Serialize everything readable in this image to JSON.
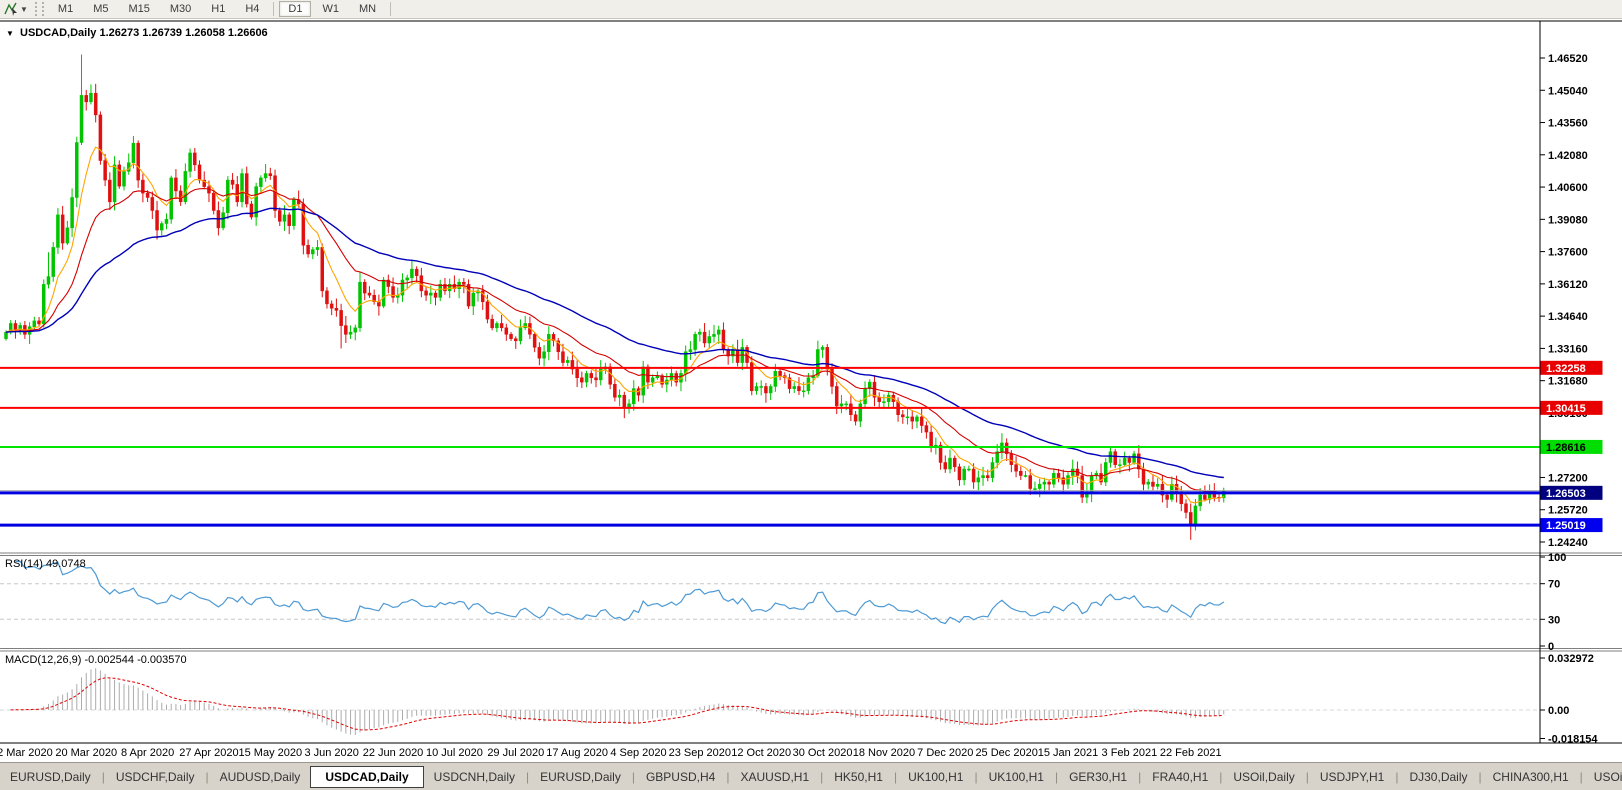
{
  "toolbar": {
    "timeframes": [
      "M1",
      "M5",
      "M15",
      "M30",
      "H1",
      "H4",
      "D1",
      "W1",
      "MN"
    ],
    "active_timeframe": "D1"
  },
  "chart": {
    "title_symbol": "USDCAD,Daily",
    "title_ohlc": "1.26273 1.26739 1.26058 1.26606"
  },
  "chart_data": {
    "type": "candlestick",
    "symbol": "USDCAD",
    "timeframe": "Daily",
    "last_bar": {
      "open": 1.26273,
      "high": 1.26739,
      "low": 1.26058,
      "close": 1.26606
    },
    "price_axis_ticks": [
      "1.46520",
      "1.45040",
      "1.43560",
      "1.42080",
      "1.40600",
      "1.39080",
      "1.37600",
      "1.36120",
      "1.34640",
      "1.33160",
      "1.31680",
      "1.30160",
      "1.28680",
      "1.27200",
      "1.25720",
      "1.24240"
    ],
    "x_tick_labels": [
      "2 Mar 2020",
      "20 Mar 2020",
      "8 Apr 2020",
      "27 Apr 2020",
      "15 May 2020",
      "3 Jun 2020",
      "22 Jun 2020",
      "10 Jul 2020",
      "29 Jul 2020",
      "17 Aug 2020",
      "4 Sep 2020",
      "23 Sep 2020",
      "12 Oct 2020",
      "30 Oct 2020",
      "18 Nov 2020",
      "7 Dec 2020",
      "25 Dec 2020",
      "15 Jan 2021",
      "3 Feb 2021",
      "22 Feb 2021"
    ],
    "closes": [
      1.339,
      1.343,
      1.3402,
      1.3421,
      1.338,
      1.3415,
      1.3442,
      1.3428,
      1.361,
      1.3646,
      1.378,
      1.393,
      1.38,
      1.387,
      1.401,
      1.4263,
      1.448,
      1.445,
      1.449,
      1.439,
      1.418,
      1.409,
      1.399,
      1.416,
      1.4062,
      1.413,
      1.417,
      1.426,
      1.409,
      1.403,
      1.401,
      1.395,
      1.386,
      1.389,
      1.391,
      1.41,
      1.404,
      1.399,
      1.413,
      1.4215,
      1.416,
      1.409,
      1.406,
      1.403,
      1.395,
      1.387,
      1.394,
      1.409,
      1.407,
      1.399,
      1.412,
      1.398,
      1.392,
      1.406,
      1.41,
      1.412,
      1.411,
      1.395,
      1.39,
      1.393,
      1.388,
      1.4,
      1.398,
      1.379,
      1.375,
      1.377,
      1.378,
      1.358,
      1.352,
      1.35,
      1.349,
      1.342,
      1.338,
      1.339,
      1.341,
      1.362,
      1.357,
      1.356,
      1.353,
      1.351,
      1.363,
      1.36,
      1.355,
      1.356,
      1.363,
      1.364,
      1.368,
      1.365,
      1.358,
      1.356,
      1.357,
      1.355,
      1.361,
      1.358,
      1.361,
      1.359,
      1.362,
      1.361,
      1.351,
      1.357,
      1.358,
      1.353,
      1.345,
      1.341,
      1.343,
      1.341,
      1.338,
      1.336,
      1.335,
      1.341,
      1.343,
      1.338,
      1.332,
      1.327,
      1.33,
      1.338,
      1.335,
      1.33,
      1.325,
      1.326,
      1.322,
      1.318,
      1.316,
      1.32,
      1.318,
      1.317,
      1.322,
      1.323,
      1.315,
      1.309,
      1.31,
      1.304,
      1.306,
      1.313,
      1.31,
      1.323,
      1.316,
      1.318,
      1.319,
      1.315,
      1.317,
      1.32,
      1.316,
      1.32,
      1.33,
      1.331,
      1.338,
      1.339,
      1.334,
      1.337,
      1.338,
      1.34,
      1.331,
      1.328,
      1.331,
      1.325,
      1.332,
      1.325,
      1.312,
      1.314,
      1.314,
      1.311,
      1.314,
      1.321,
      1.319,
      1.318,
      1.313,
      1.314,
      1.312,
      1.312,
      1.318,
      1.319,
      1.331,
      1.332,
      1.322,
      1.314,
      1.305,
      1.306,
      1.306,
      1.301,
      1.298,
      1.306,
      1.313,
      1.316,
      1.309,
      1.307,
      1.307,
      1.31,
      1.307,
      1.301,
      1.3,
      1.3,
      1.298,
      1.3,
      1.296,
      1.293,
      1.286,
      1.287,
      1.279,
      1.276,
      1.281,
      1.277,
      1.271,
      1.276,
      1.276,
      1.27,
      1.272,
      1.273,
      1.272,
      1.279,
      1.284,
      1.288,
      1.283,
      1.278,
      1.275,
      1.273,
      1.273,
      1.267,
      1.267,
      1.269,
      1.27,
      1.269,
      1.274,
      1.272,
      1.269,
      1.273,
      1.276,
      1.273,
      1.263,
      1.265,
      1.273,
      1.274,
      1.27,
      1.279,
      1.284,
      1.278,
      1.278,
      1.281,
      1.279,
      1.283,
      1.276,
      1.269,
      1.27,
      1.268,
      1.269,
      1.264,
      1.262,
      1.269,
      1.265,
      1.26,
      1.256,
      1.25,
      1.259,
      1.264,
      1.262,
      1.266,
      1.263,
      1.2627,
      1.26606
    ],
    "wick_overrides": {
      "9": {
        "high": 1.3758
      },
      "16": {
        "high": 1.4668
      },
      "71": {
        "low": 1.3315
      },
      "131": {
        "low": 1.2994
      },
      "211": {
        "high": 1.2925
      },
      "251": {
        "low": 1.2434
      },
      "258": {
        "open": 1.26273,
        "high": 1.26739,
        "low": 1.26058
      }
    },
    "candle_up_color": "#00C400",
    "candle_down_color": "#E01010",
    "levels": [
      {
        "price": 1.32258,
        "label": "1.32258",
        "line_color": "#FF0000",
        "badge_color": "#E80000",
        "text_color": "#FFFFFF",
        "width": 2
      },
      {
        "price": 1.30415,
        "label": "1.30415",
        "line_color": "#FF0000",
        "badge_color": "#E80000",
        "text_color": "#FFFFFF",
        "width": 2
      },
      {
        "price": 1.28616,
        "label": "1.28616",
        "line_color": "#00E400",
        "badge_color": "#00DD00",
        "text_color": "#000000",
        "width": 2
      },
      {
        "price": 1.26503,
        "label": "1.26503",
        "line_color": "#0000E0",
        "badge_color": "#000080",
        "text_color": "#FFFFFF",
        "width": 3
      },
      {
        "price": 1.25019,
        "label": "1.25019",
        "line_color": "#0000E0",
        "badge_color": "#0000EE",
        "text_color": "#FFFFFF",
        "width": 3
      }
    ],
    "current_price": {
      "value": 1.26606,
      "color": "#ABABAB"
    },
    "moving_averages": [
      {
        "name": "fast",
        "color": "#FFA500"
      },
      {
        "name": "medium",
        "color": "#D40000"
      },
      {
        "name": "slow",
        "color": "#0000B8"
      }
    ],
    "indicators": [
      {
        "name": "RSI",
        "label": "RSI(14) 49.0748",
        "line_color": "#4E9AD4",
        "axis_labels": [
          "100",
          "70",
          "30",
          "0"
        ],
        "level_lines": [
          70,
          30
        ]
      },
      {
        "name": "MACD",
        "label": "MACD(12,26,9) -0.002544 -0.003570",
        "axis_labels": [
          "0.032972",
          "0.00",
          "-0.018154"
        ],
        "histogram_color": "#ABABAB",
        "signal_color": "#E00000"
      }
    ]
  },
  "tabbar": {
    "active_index": 3,
    "tabs": [
      "EURUSD,Daily",
      "USDCHF,Daily",
      "AUDUSD,Daily",
      "USDCAD,Daily",
      "USDCNH,Daily",
      "EURUSD,Daily",
      "GBPUSD,H4",
      "XAUUSD,H1",
      "HK50,H1",
      "UK100,H1",
      "UK100,H1",
      "GER30,H1",
      "FRA40,H1",
      "USOil,Daily",
      "USDJPY,H1",
      "DJ30,Daily",
      "CHINA300,H1",
      "USOil,"
    ],
    "scroll_left": "◂",
    "scroll_right": "▸"
  }
}
